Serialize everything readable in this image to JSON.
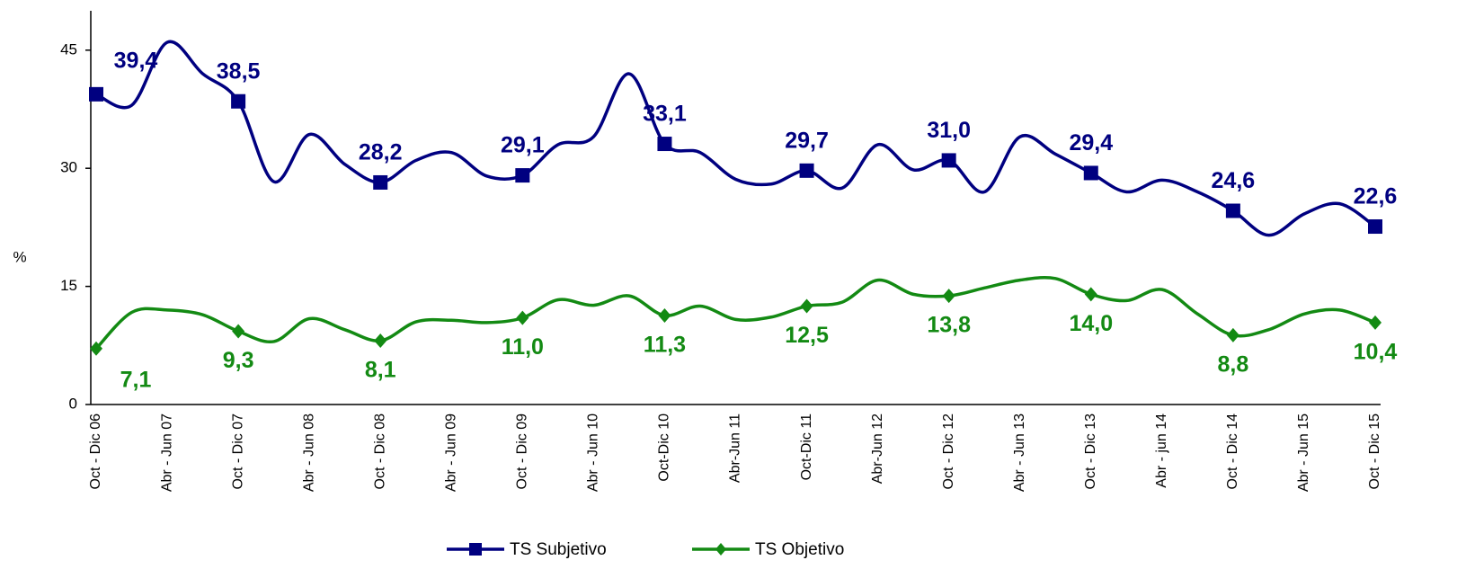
{
  "chart_data": {
    "type": "line",
    "y_label": "%",
    "categories": [
      "Oct - Dic 06",
      null,
      "Abr - Jun 07",
      null,
      "Oct - Dic 07",
      null,
      "Abr - Jun 08",
      null,
      "Oct - Dic 08",
      null,
      "Abr - Jun 09",
      null,
      "Oct - Dic 09",
      null,
      "Abr - Jun 10",
      null,
      "Oct-Dic 10",
      null,
      "Abr-Jun 11",
      null,
      "Oct-Dic 11",
      null,
      "Abr-Jun 12",
      null,
      "Oct - Dic 12",
      null,
      "Abr - Jun 13",
      null,
      "Oct - Dic 13",
      null,
      "Abr - jun 14",
      null,
      "Oct - Dic 14",
      null,
      "Abr - Jun 15",
      null,
      "Oct - Dic 15"
    ],
    "series": [
      {
        "name": "TS Subjetivo",
        "color": "#000080",
        "marker": "square",
        "values": [
          39.4,
          38.0,
          46,
          42,
          38.5,
          28.3,
          34.3,
          30.5,
          28.2,
          31,
          32,
          29,
          29.1,
          33,
          34,
          42,
          33.1,
          32,
          28.6,
          28,
          29.7,
          27.5,
          33,
          29.8,
          31.0,
          27,
          34,
          31.8,
          29.4,
          27,
          28.5,
          27,
          24.6,
          21.5,
          24.2,
          25.5,
          22.6
        ],
        "value_labels": [
          "39,4",
          null,
          null,
          null,
          "38,5",
          null,
          null,
          null,
          "28,2",
          null,
          null,
          null,
          "29,1",
          null,
          null,
          null,
          "33,1",
          null,
          null,
          null,
          "29,7",
          null,
          null,
          null,
          "31,0",
          null,
          null,
          null,
          "29,4",
          null,
          null,
          null,
          "24,6",
          null,
          null,
          null,
          "22,6"
        ]
      },
      {
        "name": "TS Objetivo",
        "color": "#138a13",
        "marker": "diamond",
        "values": [
          7.1,
          11.7,
          12,
          11.4,
          9.3,
          8.0,
          10.9,
          9.5,
          8.1,
          10.5,
          10.7,
          10.4,
          11.0,
          13.3,
          12.6,
          13.8,
          11.3,
          12.5,
          10.8,
          11.1,
          12.5,
          13,
          15.8,
          14.0,
          13.8,
          14.8,
          15.8,
          16.0,
          14.0,
          13.2,
          14.6,
          11.5,
          8.8,
          9.5,
          11.5,
          12.0,
          10.4
        ],
        "value_labels": [
          "7,1",
          null,
          null,
          null,
          "9,3",
          null,
          null,
          null,
          "8,1",
          null,
          null,
          null,
          "11,0",
          null,
          null,
          null,
          "11,3",
          null,
          null,
          null,
          "12,5",
          null,
          null,
          null,
          "13,8",
          null,
          null,
          null,
          "14,0",
          null,
          null,
          null,
          "8,8",
          null,
          null,
          null,
          "10,4"
        ]
      }
    ],
    "ylim": [
      0,
      50
    ],
    "yticks": [
      0,
      15,
      30,
      45
    ],
    "grid": false,
    "legend": "bottom"
  }
}
